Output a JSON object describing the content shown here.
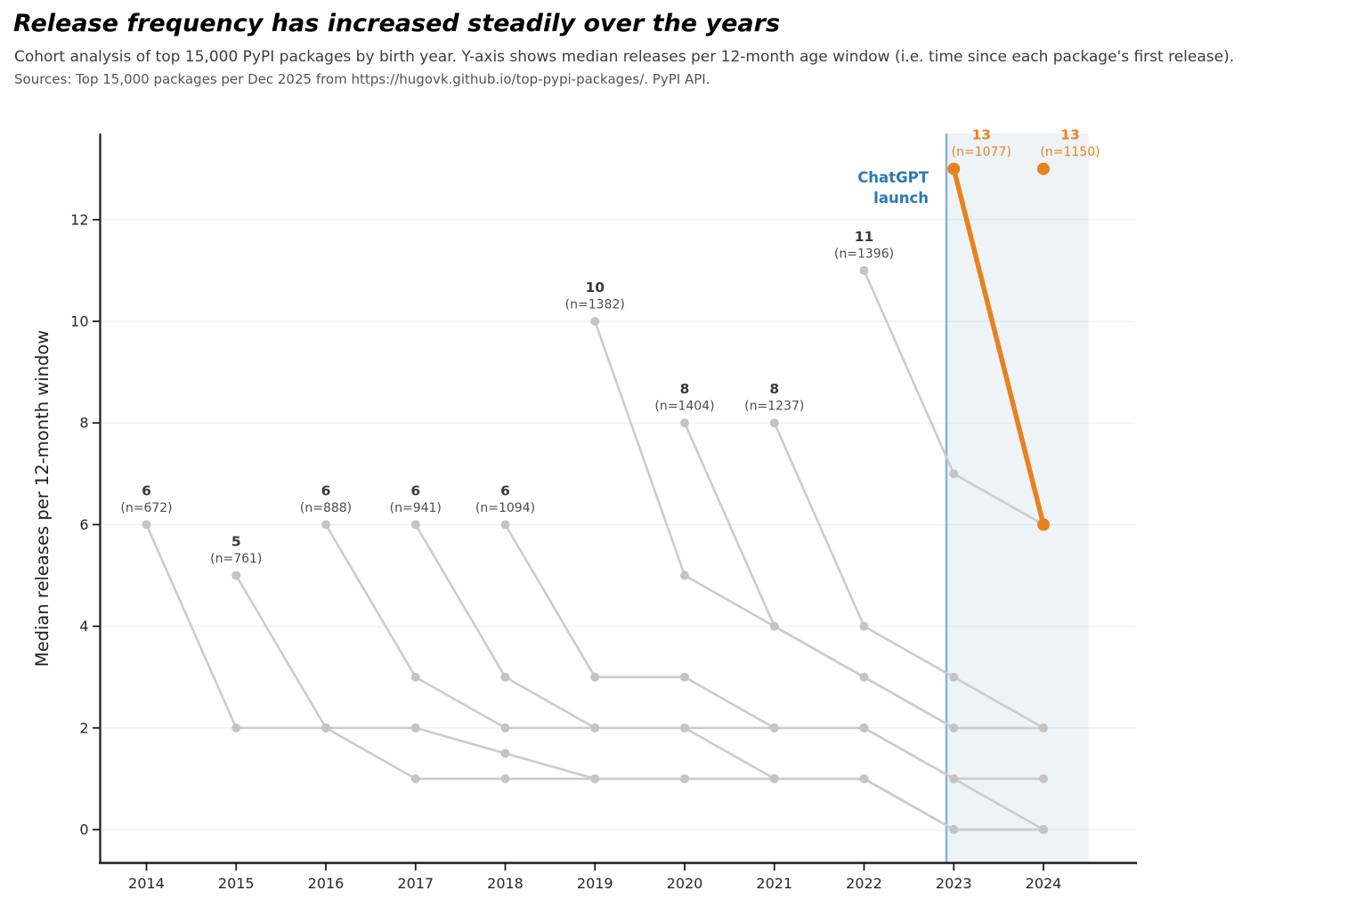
{
  "header": {
    "title": "Release frequency has increased steadily over the years",
    "subtitle": "Cohort analysis of top 15,000 PyPI packages by birth year. Y-axis shows median releases per 12-month age window (i.e. time since each package's first release).",
    "sources": "Sources: Top 15,000 packages per Dec 2025 from https://hugovk.github.io/top-pypi-packages/. PyPI API."
  },
  "chart_data": {
    "type": "line",
    "title": "Release frequency has increased steadily over the years",
    "xlabel": "",
    "ylabel": "Median releases per 12-month window",
    "xticks": [
      2014,
      2015,
      2016,
      2017,
      2018,
      2019,
      2020,
      2021,
      2022,
      2023,
      2024
    ],
    "yticks": [
      0,
      2,
      4,
      6,
      8,
      10,
      12
    ],
    "xlim": [
      2013.49,
      2025.02
    ],
    "ylim": [
      -0.65,
      13.7
    ],
    "grid": "horizontal-only",
    "legend": "none",
    "series": [
      {
        "cohort": "2014",
        "highlight": false,
        "points": [
          [
            2014,
            6
          ],
          [
            2015,
            2
          ],
          [
            2016,
            2
          ],
          [
            2017,
            1
          ],
          [
            2018,
            1
          ],
          [
            2019,
            1
          ],
          [
            2020,
            1
          ],
          [
            2021,
            1
          ],
          [
            2022,
            1
          ],
          [
            2023,
            0
          ],
          [
            2024,
            0
          ]
        ],
        "peak_label": {
          "value": "6",
          "n": "(n=672)",
          "dx": 0
        }
      },
      {
        "cohort": "2015",
        "highlight": false,
        "points": [
          [
            2015,
            5
          ],
          [
            2016,
            2
          ],
          [
            2017,
            2
          ],
          [
            2018,
            1.5
          ],
          [
            2019,
            1
          ],
          [
            2020,
            1
          ],
          [
            2021,
            1
          ],
          [
            2022,
            1
          ],
          [
            2023,
            0
          ],
          [
            2024,
            0
          ]
        ],
        "peak_label": {
          "value": "5",
          "n": "(n=761)",
          "dx": 0
        }
      },
      {
        "cohort": "2016",
        "highlight": false,
        "points": [
          [
            2016,
            6
          ],
          [
            2017,
            3
          ],
          [
            2018,
            2
          ],
          [
            2019,
            2
          ],
          [
            2020,
            2
          ],
          [
            2021,
            2
          ],
          [
            2022,
            2
          ],
          [
            2023,
            1
          ],
          [
            2024,
            1
          ]
        ],
        "peak_label": {
          "value": "6",
          "n": "(n=888)",
          "dx": 0
        }
      },
      {
        "cohort": "2017",
        "highlight": false,
        "points": [
          [
            2017,
            6
          ],
          [
            2018,
            3
          ],
          [
            2019,
            2
          ],
          [
            2020,
            2
          ],
          [
            2021,
            1
          ],
          [
            2022,
            1
          ],
          [
            2023,
            0
          ],
          [
            2024,
            0
          ]
        ],
        "peak_label": {
          "value": "6",
          "n": "(n=941)",
          "dx": 0
        }
      },
      {
        "cohort": "2018",
        "highlight": false,
        "points": [
          [
            2018,
            6
          ],
          [
            2019,
            3
          ],
          [
            2020,
            3
          ],
          [
            2021,
            2
          ],
          [
            2022,
            2
          ],
          [
            2023,
            1
          ],
          [
            2024,
            0
          ]
        ],
        "peak_label": {
          "value": "6",
          "n": "(n=1094)",
          "dx": 0
        }
      },
      {
        "cohort": "2019",
        "highlight": false,
        "points": [
          [
            2019,
            10
          ],
          [
            2020,
            5
          ],
          [
            2021,
            4
          ],
          [
            2022,
            3
          ],
          [
            2023,
            2
          ],
          [
            2024,
            2
          ]
        ],
        "peak_label": {
          "value": "10",
          "n": "(n=1382)",
          "dx": 0
        }
      },
      {
        "cohort": "2020",
        "highlight": false,
        "points": [
          [
            2020,
            8
          ],
          [
            2021,
            4
          ],
          [
            2022,
            3
          ],
          [
            2023,
            2
          ],
          [
            2024,
            2
          ]
        ],
        "peak_label": {
          "value": "8",
          "n": "(n=1404)",
          "dx": 0
        }
      },
      {
        "cohort": "2021",
        "highlight": false,
        "points": [
          [
            2021,
            8
          ],
          [
            2022,
            4
          ],
          [
            2023,
            3
          ],
          [
            2024,
            2
          ]
        ],
        "peak_label": {
          "value": "8",
          "n": "(n=1237)",
          "dx": 0
        }
      },
      {
        "cohort": "2022",
        "highlight": false,
        "points": [
          [
            2022,
            11
          ],
          [
            2023,
            7
          ],
          [
            2024,
            6
          ]
        ],
        "peak_label": {
          "value": "11",
          "n": "(n=1396)",
          "dx": 0
        }
      },
      {
        "cohort": "2023",
        "highlight": true,
        "points": [
          [
            2023,
            13
          ],
          [
            2024,
            6
          ]
        ],
        "peak_label": {
          "value": "13",
          "n": "(n=1077)",
          "dx": 31
        }
      },
      {
        "cohort": "2024",
        "highlight": true,
        "points": [
          [
            2024,
            13
          ]
        ],
        "peak_label": {
          "value": "13",
          "n": "(n=1150)",
          "dx": 30
        }
      }
    ],
    "annotation": {
      "lines": [
        "ChatGPT",
        "launch"
      ],
      "color": "#2979b8"
    },
    "event_line": {
      "year": 2022.918,
      "color": "#8bb5d6"
    },
    "shaded_region": {
      "from_year": 2022.918,
      "to_year": 2024.5,
      "color": "rgba(125,165,200,0.13)"
    },
    "colors": {
      "highlight": "#E8821E",
      "line": "#cccccc",
      "marker": "#c4c4c4",
      "grid": "#f1f1f1",
      "axis": "#1c1c1c",
      "tick_label": "#262626",
      "peak_value": "#3a3a3a",
      "peak_n": "#4d4d4d"
    }
  }
}
